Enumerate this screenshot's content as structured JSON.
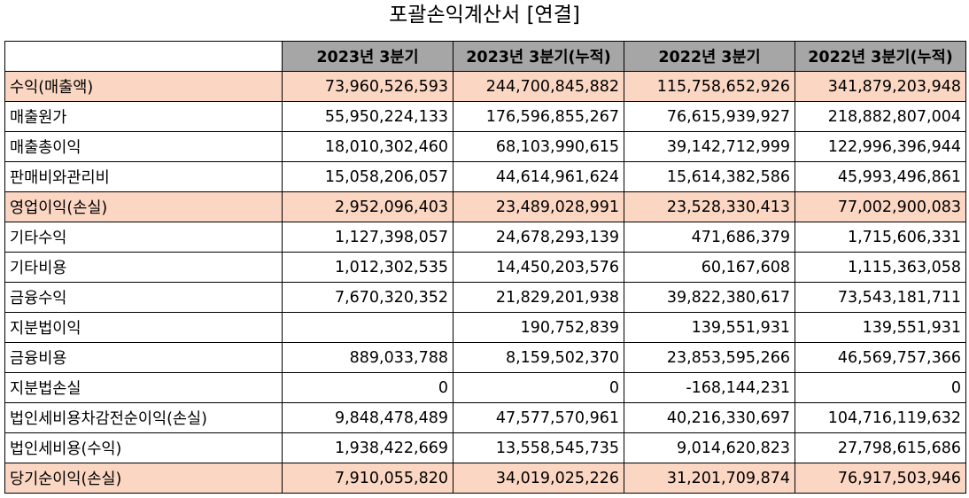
{
  "title": "포괄손익계산서 [연결]",
  "columns": [
    "2023년 3분기",
    "2023년 3분기(누적)",
    "2022년 3분기",
    "2022년 3분기(누적)"
  ],
  "highlight_color": "#fbd6c2",
  "header_color": "#a6a6a6",
  "rows": [
    {
      "label": "수익(매출액)",
      "values": [
        "73,960,526,593",
        "244,700,845,882",
        "115,758,652,926",
        "341,879,203,948"
      ],
      "highlight": true
    },
    {
      "label": "매출원가",
      "values": [
        "55,950,224,133",
        "176,596,855,267",
        "76,615,939,927",
        "218,882,807,004"
      ],
      "highlight": false
    },
    {
      "label": "매출총이익",
      "values": [
        "18,010,302,460",
        "68,103,990,615",
        "39,142,712,999",
        "122,996,396,944"
      ],
      "highlight": false
    },
    {
      "label": "판매비와관리비",
      "values": [
        "15,058,206,057",
        "44,614,961,624",
        "15,614,382,586",
        "45,993,496,861"
      ],
      "highlight": false
    },
    {
      "label": "영업이익(손실)",
      "values": [
        "2,952,096,403",
        "23,489,028,991",
        "23,528,330,413",
        "77,002,900,083"
      ],
      "highlight": true
    },
    {
      "label": "기타수익",
      "values": [
        "1,127,398,057",
        "24,678,293,139",
        "471,686,379",
        "1,715,606,331"
      ],
      "highlight": false
    },
    {
      "label": "기타비용",
      "values": [
        "1,012,302,535",
        "14,450,203,576",
        "60,167,608",
        "1,115,363,058"
      ],
      "highlight": false
    },
    {
      "label": "금융수익",
      "values": [
        "7,670,320,352",
        "21,829,201,938",
        "39,822,380,617",
        "73,543,181,711"
      ],
      "highlight": false
    },
    {
      "label": "지분법이익",
      "values": [
        "",
        "190,752,839",
        "139,551,931",
        "139,551,931"
      ],
      "highlight": false
    },
    {
      "label": "금융비용",
      "values": [
        "889,033,788",
        "8,159,502,370",
        "23,853,595,266",
        "46,569,757,366"
      ],
      "highlight": false
    },
    {
      "label": "지분법손실",
      "values": [
        "0",
        "0",
        "-168,144,231",
        "0"
      ],
      "highlight": false
    },
    {
      "label": "법인세비용차감전순이익(손실)",
      "values": [
        "9,848,478,489",
        "47,577,570,961",
        "40,216,330,697",
        "104,716,119,632"
      ],
      "highlight": false
    },
    {
      "label": "법인세비용(수익)",
      "values": [
        "1,938,422,669",
        "13,558,545,735",
        "9,014,620,823",
        "27,798,615,686"
      ],
      "highlight": false
    },
    {
      "label": "당기순이익(손실)",
      "values": [
        "7,910,055,820",
        "34,019,025,226",
        "31,201,709,874",
        "76,917,503,946"
      ],
      "highlight": true
    }
  ]
}
